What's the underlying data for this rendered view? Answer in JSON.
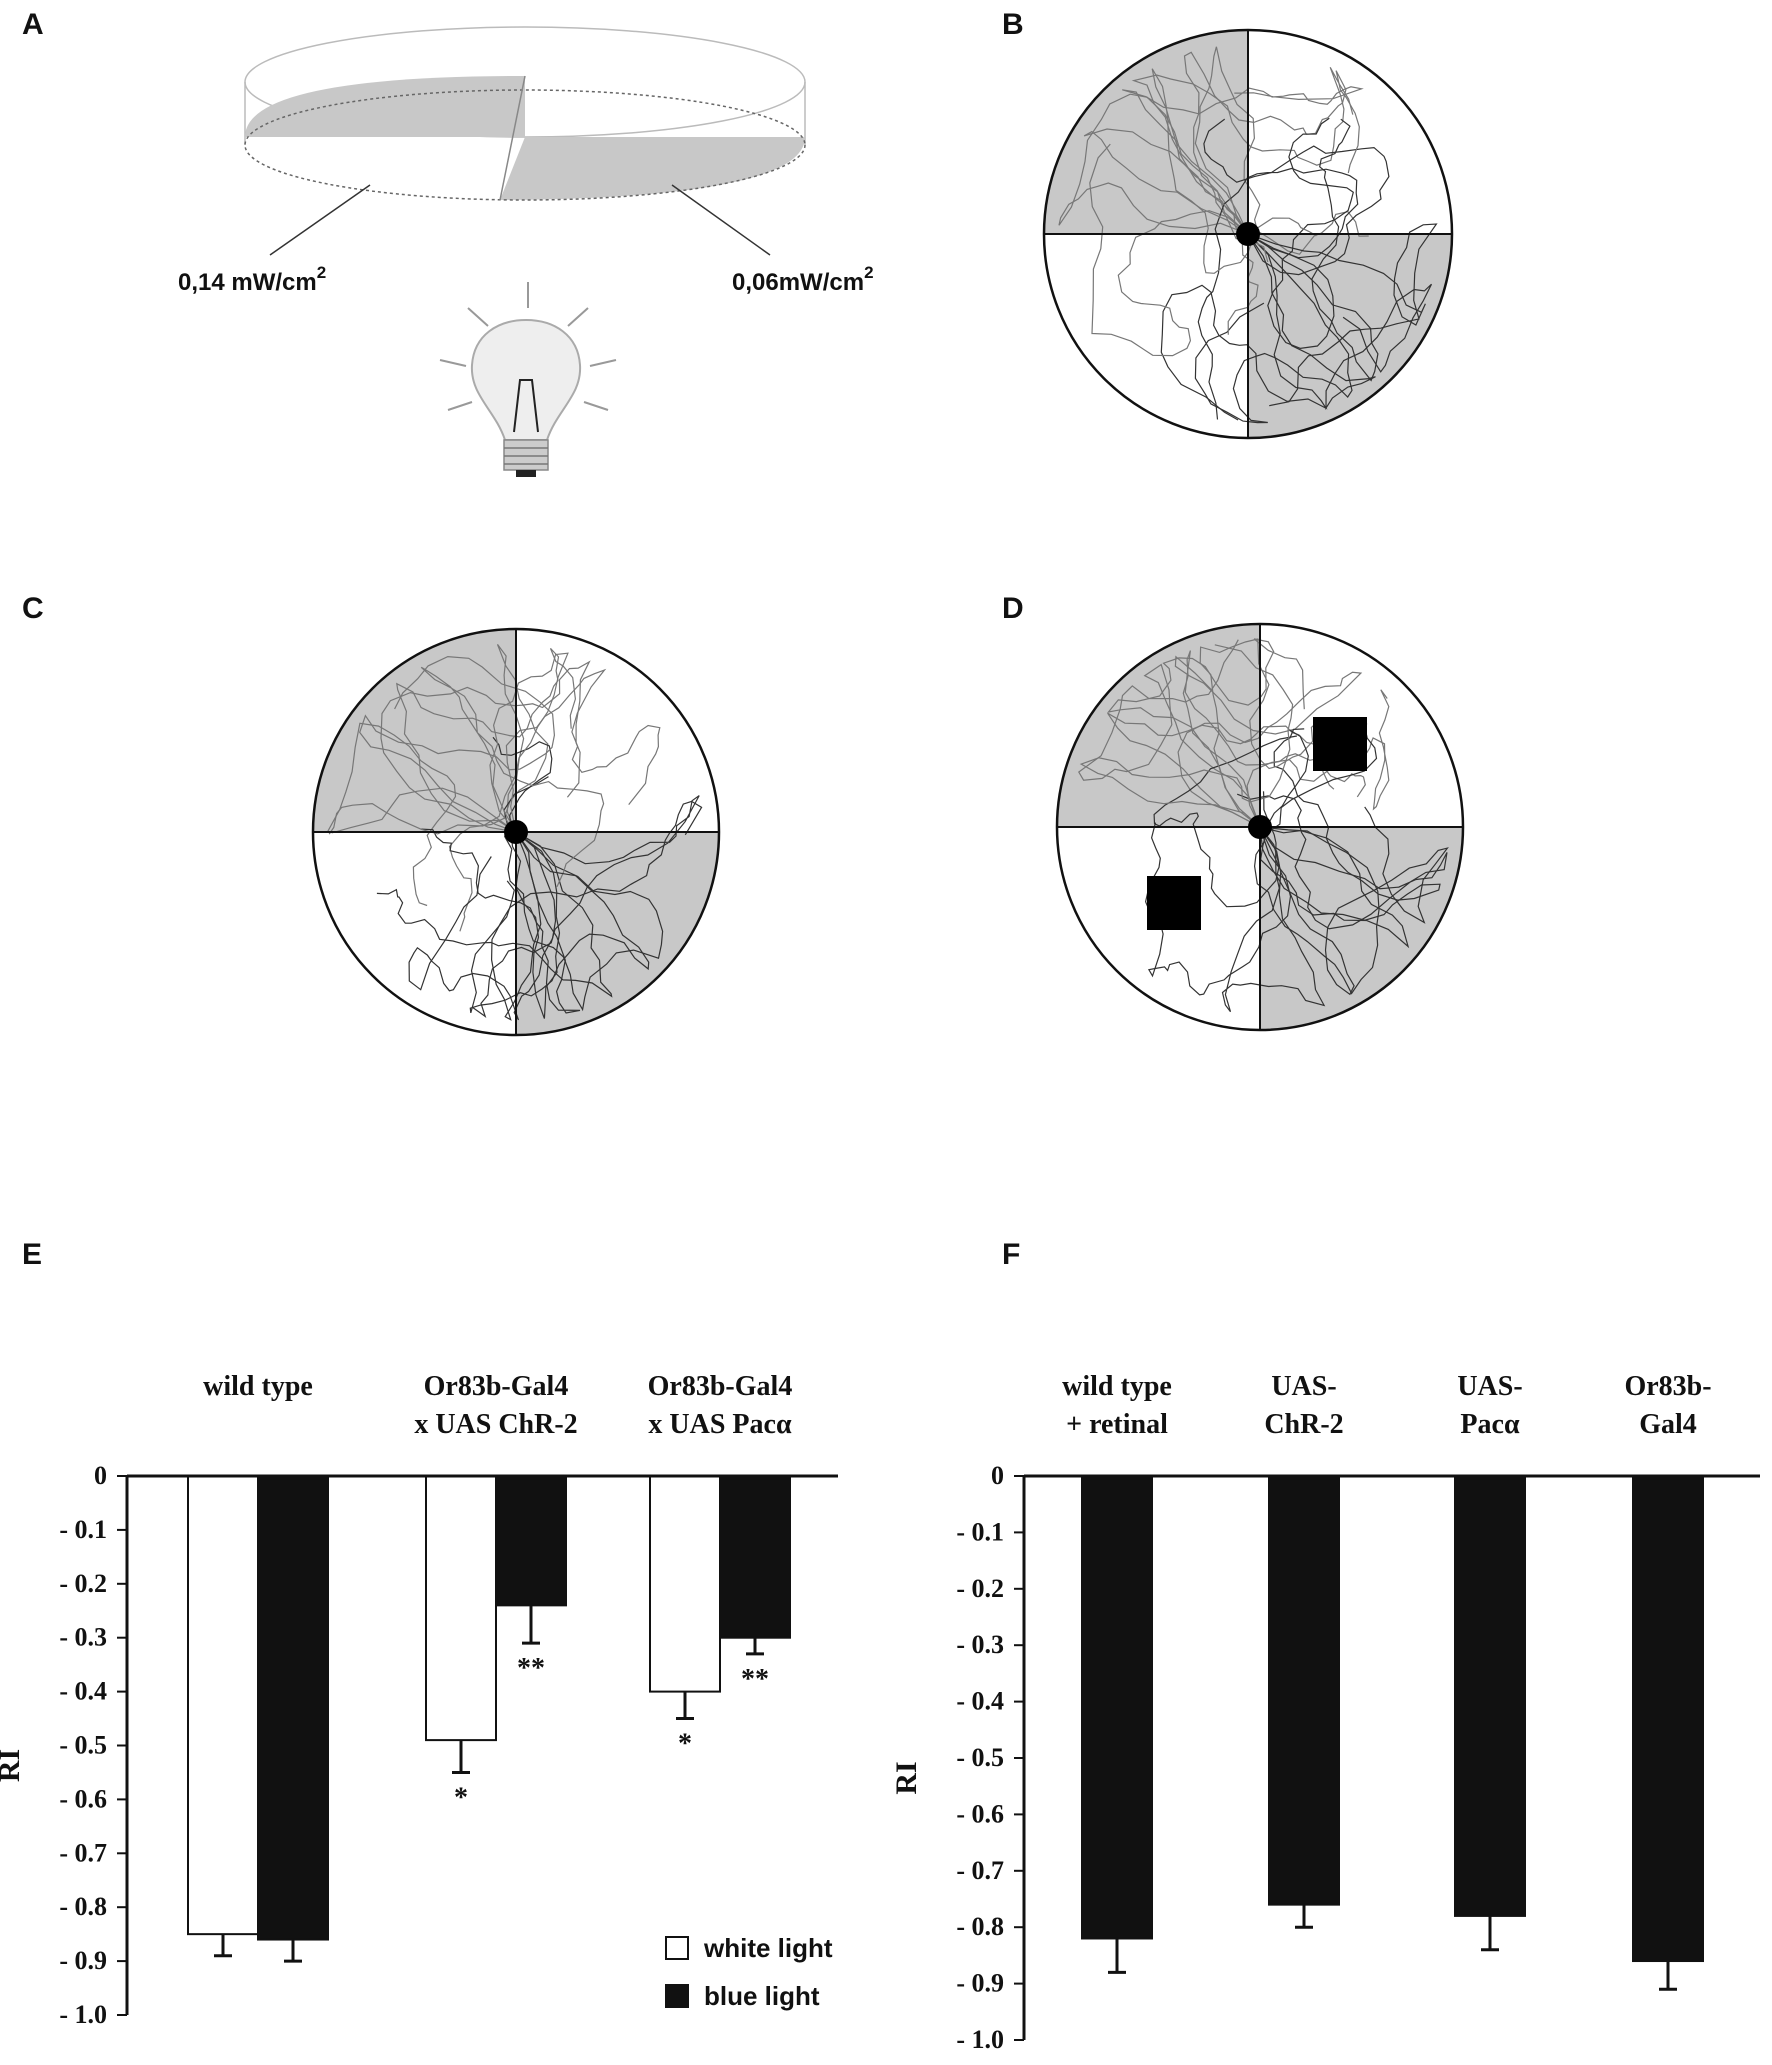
{
  "panels": {
    "A": {
      "letter": "A",
      "left_label_value": "0,14 mW/cm",
      "left_label_sup": "2",
      "right_label_value": "0,06mW/cm",
      "right_label_sup": "2"
    },
    "B": {
      "letter": "B"
    },
    "C": {
      "letter": "C"
    },
    "D": {
      "letter": "D"
    },
    "E": {
      "letter": "E"
    },
    "F": {
      "letter": "F"
    }
  },
  "colors": {
    "shaded_quadrant": "#c8c8c8",
    "white_bar": "#ffffff",
    "black_bar": "#111111",
    "axis": "#111111"
  },
  "chart_data": [
    {
      "panel": "E",
      "type": "bar",
      "categories": [
        [
          "wild type"
        ],
        [
          "Or83b-Gal4",
          "x UAS ChR-2"
        ],
        [
          "Or83b-Gal4",
          "x UAS Pacα"
        ]
      ],
      "series": [
        {
          "name": "white light",
          "color": "#ffffff",
          "values": [
            -0.85,
            -0.49,
            -0.4
          ],
          "errors": [
            0.04,
            0.06,
            0.05
          ],
          "significance": [
            "",
            "*",
            "*"
          ]
        },
        {
          "name": "blue light",
          "color": "#111111",
          "values": [
            -0.86,
            -0.24,
            -0.3
          ],
          "errors": [
            0.04,
            0.07,
            0.03
          ],
          "significance": [
            "",
            "**",
            "**"
          ]
        }
      ],
      "ylabel": "RI",
      "ylim": [
        -1.0,
        0
      ],
      "yticks": [
        "0",
        "- 0.1",
        "- 0.2",
        "- 0.3",
        "- 0.4",
        "- 0.5",
        "- 0.6",
        "- 0.7",
        "- 0.8",
        "- 0.9",
        "- 1.0"
      ],
      "legend_position": "bottom-right",
      "grid": false
    },
    {
      "panel": "F",
      "type": "bar",
      "categories": [
        [
          "wild type",
          "+ retinal"
        ],
        [
          "UAS-",
          "ChR-2"
        ],
        [
          "UAS-",
          "Pacα"
        ],
        [
          "Or83b-",
          "Gal4"
        ]
      ],
      "series": [
        {
          "color": "#111111",
          "values": [
            -0.82,
            -0.76,
            -0.78,
            -0.86
          ],
          "errors": [
            0.06,
            0.04,
            0.06,
            0.05
          ]
        }
      ],
      "ylabel": "RI",
      "ylim": [
        -1.0,
        0
      ],
      "yticks": [
        "0",
        "- 0.1",
        "- 0.2",
        "- 0.3",
        "- 0.4",
        "- 0.5",
        "- 0.6",
        "- 0.7",
        "- 0.8",
        "- 0.9",
        "- 1.0"
      ],
      "grid": false
    }
  ]
}
